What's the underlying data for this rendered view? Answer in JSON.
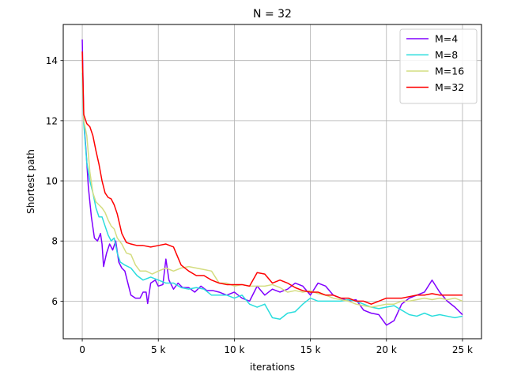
{
  "chart_data": {
    "type": "line",
    "title": "N = 32",
    "xlabel": "iterations",
    "ylabel": "Shortest path",
    "xlim": [
      -1250,
      26250
    ],
    "ylim": [
      4.75,
      15.2
    ],
    "xticks": [
      0,
      5000,
      10000,
      15000,
      20000,
      25000
    ],
    "xtick_labels": [
      "0",
      "5 k",
      "10 k",
      "15 k",
      "20 k",
      "25 k"
    ],
    "yticks": [
      6,
      8,
      10,
      12,
      14
    ],
    "ytick_labels": [
      "6",
      "8",
      "10",
      "12",
      "14"
    ],
    "grid": true,
    "legend_position": "top-right",
    "series": [
      {
        "name": "M=4",
        "color": "#8000ff",
        "points": [
          [
            0,
            14.7
          ],
          [
            100,
            12.0
          ],
          [
            250,
            11.0
          ],
          [
            400,
            9.8
          ],
          [
            600,
            8.8
          ],
          [
            800,
            8.1
          ],
          [
            1000,
            8.0
          ],
          [
            1200,
            8.25
          ],
          [
            1300,
            7.9
          ],
          [
            1400,
            7.15
          ],
          [
            1600,
            7.6
          ],
          [
            1800,
            7.9
          ],
          [
            2000,
            7.7
          ],
          [
            2200,
            8.0
          ],
          [
            2400,
            7.3
          ],
          [
            2600,
            7.1
          ],
          [
            2800,
            7.0
          ],
          [
            3000,
            6.6
          ],
          [
            3200,
            6.2
          ],
          [
            3500,
            6.1
          ],
          [
            3800,
            6.1
          ],
          [
            4000,
            6.3
          ],
          [
            4200,
            6.3
          ],
          [
            4300,
            5.92
          ],
          [
            4500,
            6.6
          ],
          [
            4800,
            6.7
          ],
          [
            5000,
            6.5
          ],
          [
            5300,
            6.55
          ],
          [
            5500,
            7.4
          ],
          [
            5700,
            6.7
          ],
          [
            6000,
            6.4
          ],
          [
            6300,
            6.6
          ],
          [
            6600,
            6.45
          ],
          [
            7000,
            6.45
          ],
          [
            7400,
            6.3
          ],
          [
            7800,
            6.5
          ],
          [
            8200,
            6.35
          ],
          [
            8600,
            6.35
          ],
          [
            9000,
            6.3
          ],
          [
            9500,
            6.2
          ],
          [
            10000,
            6.3
          ],
          [
            10500,
            6.1
          ],
          [
            11000,
            6.0
          ],
          [
            11500,
            6.5
          ],
          [
            12000,
            6.2
          ],
          [
            12500,
            6.4
          ],
          [
            13000,
            6.3
          ],
          [
            13500,
            6.4
          ],
          [
            14000,
            6.6
          ],
          [
            14500,
            6.5
          ],
          [
            15000,
            6.2
          ],
          [
            15500,
            6.6
          ],
          [
            16000,
            6.5
          ],
          [
            16500,
            6.2
          ],
          [
            17000,
            6.1
          ],
          [
            17500,
            6.0
          ],
          [
            18000,
            6.05
          ],
          [
            18500,
            5.7
          ],
          [
            19000,
            5.6
          ],
          [
            19500,
            5.55
          ],
          [
            20000,
            5.2
          ],
          [
            20500,
            5.35
          ],
          [
            21000,
            5.9
          ],
          [
            21500,
            6.1
          ],
          [
            22000,
            6.2
          ],
          [
            22500,
            6.3
          ],
          [
            23000,
            6.7
          ],
          [
            23500,
            6.3
          ],
          [
            24000,
            6.0
          ],
          [
            24500,
            5.8
          ],
          [
            25000,
            5.55
          ]
        ]
      },
      {
        "name": "M=8",
        "color": "#2adddd",
        "points": [
          [
            0,
            13.6
          ],
          [
            100,
            11.9
          ],
          [
            300,
            10.6
          ],
          [
            500,
            10.0
          ],
          [
            700,
            9.6
          ],
          [
            900,
            9.1
          ],
          [
            1100,
            8.8
          ],
          [
            1300,
            8.8
          ],
          [
            1500,
            8.5
          ],
          [
            1700,
            8.2
          ],
          [
            1900,
            8.0
          ],
          [
            2100,
            8.1
          ],
          [
            2300,
            7.6
          ],
          [
            2500,
            7.3
          ],
          [
            2800,
            7.2
          ],
          [
            3200,
            7.1
          ],
          [
            3600,
            6.85
          ],
          [
            4000,
            6.7
          ],
          [
            4500,
            6.8
          ],
          [
            5000,
            6.7
          ],
          [
            5500,
            6.6
          ],
          [
            6000,
            6.6
          ],
          [
            6500,
            6.45
          ],
          [
            7000,
            6.4
          ],
          [
            7500,
            6.45
          ],
          [
            8000,
            6.4
          ],
          [
            8500,
            6.2
          ],
          [
            9000,
            6.2
          ],
          [
            9500,
            6.2
          ],
          [
            10000,
            6.1
          ],
          [
            10500,
            6.2
          ],
          [
            11000,
            5.9
          ],
          [
            11500,
            5.8
          ],
          [
            12000,
            5.9
          ],
          [
            12500,
            5.45
          ],
          [
            13000,
            5.4
          ],
          [
            13500,
            5.6
          ],
          [
            14000,
            5.65
          ],
          [
            14500,
            5.9
          ],
          [
            15000,
            6.1
          ],
          [
            15500,
            6.0
          ],
          [
            16000,
            6.0
          ],
          [
            16500,
            6.0
          ],
          [
            17000,
            6.0
          ],
          [
            17500,
            6.05
          ],
          [
            18000,
            6.0
          ],
          [
            18500,
            5.9
          ],
          [
            19000,
            5.8
          ],
          [
            19500,
            5.75
          ],
          [
            20000,
            5.8
          ],
          [
            20500,
            5.85
          ],
          [
            21000,
            5.7
          ],
          [
            21500,
            5.55
          ],
          [
            22000,
            5.5
          ],
          [
            22500,
            5.6
          ],
          [
            23000,
            5.5
          ],
          [
            23500,
            5.55
          ],
          [
            24000,
            5.5
          ],
          [
            24500,
            5.45
          ],
          [
            25000,
            5.5
          ]
        ]
      },
      {
        "name": "M=16",
        "color": "#d4dd80",
        "points": [
          [
            0,
            13.8
          ],
          [
            100,
            12.0
          ],
          [
            300,
            11.5
          ],
          [
            500,
            10.3
          ],
          [
            700,
            9.6
          ],
          [
            900,
            9.3
          ],
          [
            1100,
            9.2
          ],
          [
            1300,
            9.1
          ],
          [
            1500,
            8.95
          ],
          [
            1700,
            8.7
          ],
          [
            1900,
            8.5
          ],
          [
            2100,
            8.4
          ],
          [
            2300,
            8.1
          ],
          [
            2600,
            7.9
          ],
          [
            2900,
            7.6
          ],
          [
            3200,
            7.55
          ],
          [
            3500,
            7.2
          ],
          [
            3800,
            7.0
          ],
          [
            4200,
            7.0
          ],
          [
            4600,
            6.9
          ],
          [
            5000,
            7.0
          ],
          [
            5500,
            7.1
          ],
          [
            6000,
            7.0
          ],
          [
            6500,
            7.1
          ],
          [
            7000,
            7.15
          ],
          [
            7500,
            7.1
          ],
          [
            8000,
            7.05
          ],
          [
            8500,
            7.0
          ],
          [
            9000,
            6.6
          ],
          [
            9500,
            6.6
          ],
          [
            10000,
            6.5
          ],
          [
            10500,
            6.55
          ],
          [
            11000,
            6.5
          ],
          [
            11500,
            6.5
          ],
          [
            12000,
            6.5
          ],
          [
            12500,
            6.55
          ],
          [
            13000,
            6.45
          ],
          [
            13500,
            6.3
          ],
          [
            14000,
            6.35
          ],
          [
            14500,
            6.3
          ],
          [
            15000,
            6.35
          ],
          [
            15500,
            6.25
          ],
          [
            16000,
            6.2
          ],
          [
            16500,
            6.1
          ],
          [
            17000,
            6.05
          ],
          [
            17500,
            6.0
          ],
          [
            18000,
            5.9
          ],
          [
            18500,
            5.85
          ],
          [
            19000,
            5.8
          ],
          [
            19500,
            5.85
          ],
          [
            20000,
            5.9
          ],
          [
            20500,
            5.9
          ],
          [
            21000,
            6.0
          ],
          [
            21500,
            6.0
          ],
          [
            22000,
            6.05
          ],
          [
            22500,
            6.1
          ],
          [
            23000,
            6.05
          ],
          [
            23500,
            6.1
          ],
          [
            24000,
            6.05
          ],
          [
            24500,
            6.1
          ],
          [
            25000,
            6.0
          ]
        ]
      },
      {
        "name": "M=32",
        "color": "#ff0000",
        "points": [
          [
            0,
            14.3
          ],
          [
            100,
            12.2
          ],
          [
            300,
            11.9
          ],
          [
            500,
            11.8
          ],
          [
            700,
            11.5
          ],
          [
            900,
            11.0
          ],
          [
            1100,
            10.55
          ],
          [
            1300,
            10.0
          ],
          [
            1500,
            9.6
          ],
          [
            1700,
            9.45
          ],
          [
            1900,
            9.4
          ],
          [
            2100,
            9.2
          ],
          [
            2300,
            8.9
          ],
          [
            2600,
            8.25
          ],
          [
            2900,
            7.95
          ],
          [
            3200,
            7.9
          ],
          [
            3600,
            7.85
          ],
          [
            4000,
            7.85
          ],
          [
            4500,
            7.8
          ],
          [
            5000,
            7.85
          ],
          [
            5500,
            7.9
          ],
          [
            6000,
            7.8
          ],
          [
            6500,
            7.2
          ],
          [
            7000,
            7.0
          ],
          [
            7500,
            6.85
          ],
          [
            8000,
            6.85
          ],
          [
            8500,
            6.7
          ],
          [
            9000,
            6.6
          ],
          [
            9500,
            6.55
          ],
          [
            10000,
            6.55
          ],
          [
            10500,
            6.55
          ],
          [
            11000,
            6.5
          ],
          [
            11500,
            6.95
          ],
          [
            12000,
            6.9
          ],
          [
            12500,
            6.6
          ],
          [
            13000,
            6.7
          ],
          [
            13500,
            6.6
          ],
          [
            14000,
            6.45
          ],
          [
            14500,
            6.35
          ],
          [
            15000,
            6.3
          ],
          [
            15500,
            6.3
          ],
          [
            16000,
            6.2
          ],
          [
            16500,
            6.2
          ],
          [
            17000,
            6.1
          ],
          [
            17500,
            6.1
          ],
          [
            18000,
            6.0
          ],
          [
            18500,
            6.0
          ],
          [
            19000,
            5.9
          ],
          [
            19500,
            6.0
          ],
          [
            20000,
            6.1
          ],
          [
            20500,
            6.1
          ],
          [
            21000,
            6.1
          ],
          [
            21500,
            6.15
          ],
          [
            22000,
            6.2
          ],
          [
            22500,
            6.2
          ],
          [
            23000,
            6.25
          ],
          [
            23500,
            6.2
          ],
          [
            24000,
            6.2
          ],
          [
            24500,
            6.2
          ],
          [
            25000,
            6.2
          ]
        ]
      }
    ]
  }
}
